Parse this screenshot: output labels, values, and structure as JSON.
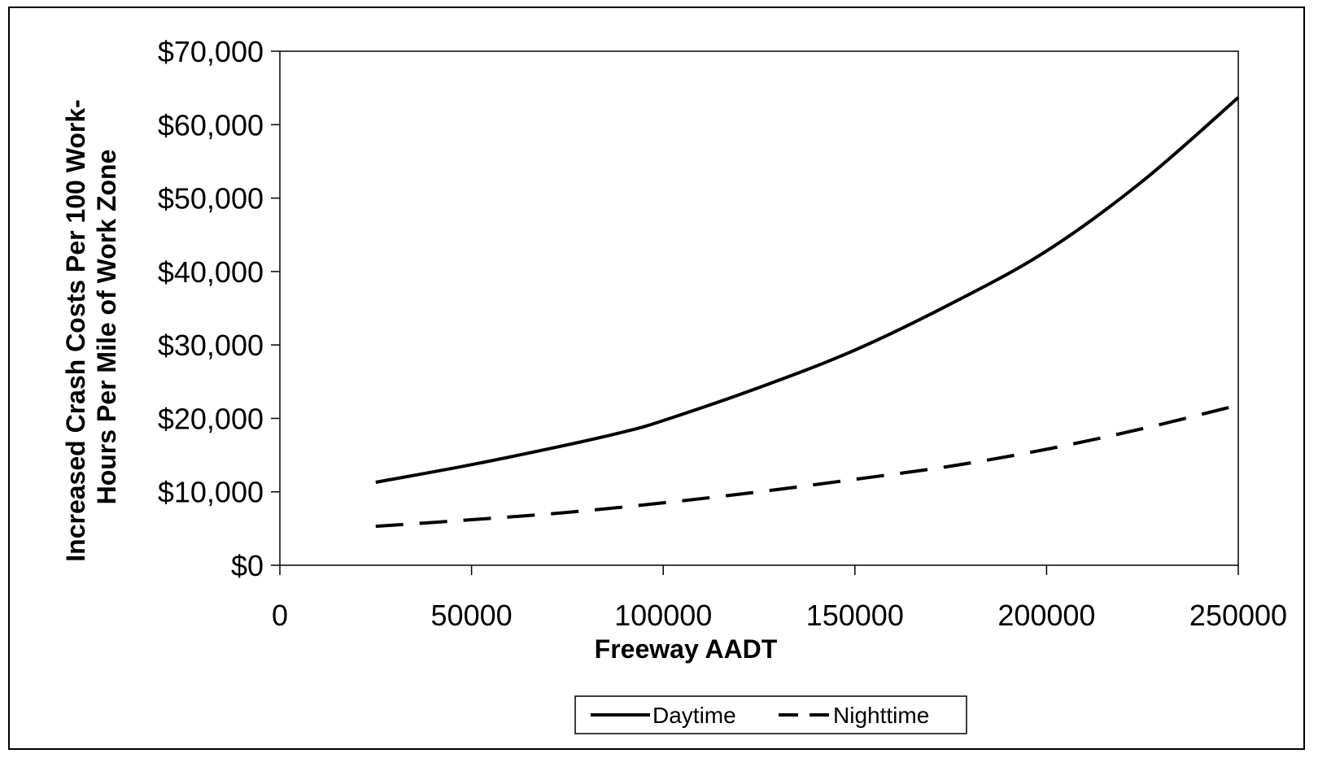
{
  "chart_data": {
    "type": "line",
    "xlabel": "Freeway AADT",
    "ylabel_lines": [
      "Increased Crash Costs Per 100 Work-",
      "Hours Per Mile of Work Zone"
    ],
    "xlim": [
      0,
      250000
    ],
    "ylim": [
      0,
      70000
    ],
    "x_ticks": [
      0,
      50000,
      100000,
      150000,
      200000,
      250000
    ],
    "x_tick_labels": [
      "0",
      "50000",
      "100000",
      "150000",
      "200000",
      "250000"
    ],
    "y_ticks": [
      0,
      10000,
      20000,
      30000,
      40000,
      50000,
      60000,
      70000
    ],
    "y_tick_labels": [
      "$0",
      "$10,000",
      "$20,000",
      "$30,000",
      "$40,000",
      "$50,000",
      "$60,000",
      "$70,000"
    ],
    "grid": false,
    "legend_position": "bottom-center",
    "series": [
      {
        "name": "Daytime",
        "style": "solid",
        "color": "#000000",
        "x": [
          25000,
          50000,
          75000,
          90000,
          100000,
          125000,
          150000,
          175000,
          200000,
          225000,
          250000
        ],
        "y": [
          11300,
          13700,
          16400,
          18200,
          19700,
          24200,
          29300,
          35600,
          42800,
          52300,
          63700
        ]
      },
      {
        "name": "Nighttime",
        "style": "dashed",
        "color": "#000000",
        "x": [
          25000,
          50000,
          75000,
          100000,
          125000,
          150000,
          175000,
          200000,
          225000,
          250000
        ],
        "y": [
          5300,
          6200,
          7200,
          8500,
          10000,
          11700,
          13500,
          15800,
          18600,
          21800
        ]
      }
    ]
  }
}
